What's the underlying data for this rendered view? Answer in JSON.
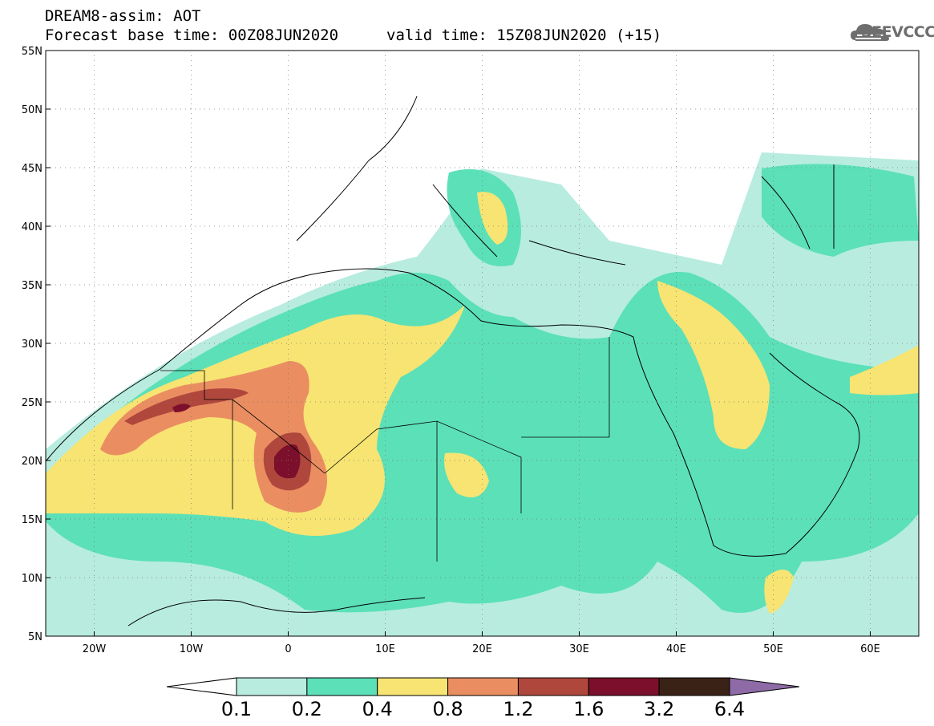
{
  "header": {
    "title": "DREAM8-assim: AOT",
    "base_time": "Forecast base time: 00Z08JUN2020",
    "valid_time": "valid time: 15Z08JUN2020 (+15)"
  },
  "logo": {
    "text": "SEEVCCC",
    "icon": "cloud-icon"
  },
  "map": {
    "lon_range": [
      -25,
      65
    ],
    "lat_range": [
      5,
      55
    ],
    "lon_ticks": [
      "20W",
      "10W",
      "0",
      "10E",
      "20E",
      "30E",
      "40E",
      "50E",
      "60E"
    ],
    "lat_ticks": [
      "5N",
      "10N",
      "15N",
      "20N",
      "25N",
      "30N",
      "35N",
      "40N",
      "45N",
      "50N",
      "55N"
    ],
    "gridlines": true
  },
  "colorbar": {
    "labels": [
      "0.1",
      "0.2",
      "0.4",
      "0.8",
      "1.2",
      "1.6",
      "3.2",
      "6.4"
    ],
    "colors": [
      "#ffffff",
      "#b8ecdf",
      "#5ce0b8",
      "#f7e472",
      "#ea8e62",
      "#b0473c",
      "#7c0f2b",
      "#3b2216",
      "#8e6ba6"
    ]
  }
}
